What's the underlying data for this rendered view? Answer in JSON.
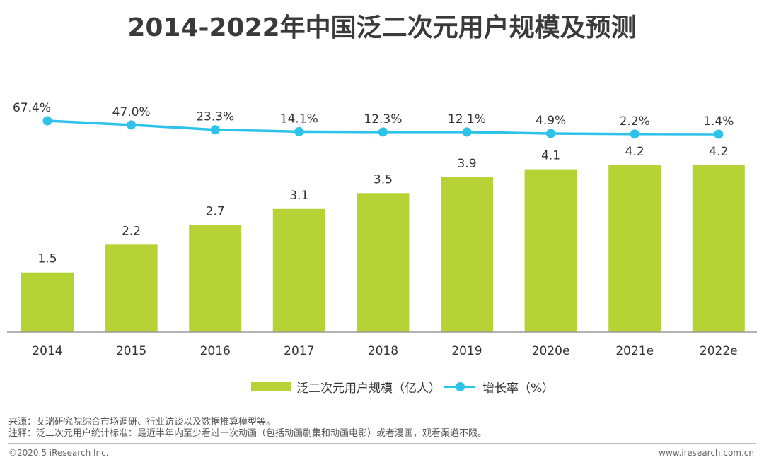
{
  "title": "2014-2022年中国泛二次元用户规模及预测",
  "chart_data": {
    "type": "bar",
    "categories": [
      "2014",
      "2015",
      "2016",
      "2017",
      "2018",
      "2019",
      "2020e",
      "2021e",
      "2022e"
    ],
    "series": [
      {
        "name": "泛二次元用户规模（亿人）",
        "type": "bar",
        "color": "#b5d334",
        "values": [
          1.5,
          2.2,
          2.7,
          3.1,
          3.5,
          3.9,
          4.1,
          4.2,
          4.2
        ],
        "labels": [
          "1.5",
          "2.2",
          "2.7",
          "3.1",
          "3.5",
          "3.9",
          "4.1",
          "4.2",
          "4.2"
        ]
      },
      {
        "name": "增长率（%）",
        "type": "line",
        "color": "#2dc2ea",
        "values": [
          67.4,
          47.0,
          23.3,
          14.1,
          12.3,
          12.1,
          4.9,
          2.2,
          1.4
        ],
        "labels": [
          "67.4%",
          "47.0%",
          "23.3%",
          "14.1%",
          "12.3%",
          "12.1%",
          "4.9%",
          "2.2%",
          "1.4%"
        ]
      }
    ],
    "ylim_bar": [
      0,
      5
    ],
    "ylim_line": [
      0,
      70
    ],
    "legend_position": "bottom"
  },
  "notes": {
    "source": "来源：艾瑞研究院综合市场调研、行业访谈以及数据推算模型等。",
    "note": "注释：泛二次元用户统计标准：最近半年内至少看过一次动画（包括动画剧集和动画电影）或者漫画，观看渠道不限。"
  },
  "footer": {
    "copyright": "©2020.5 iResearch Inc.",
    "website": "www.iresearch.com.cn"
  }
}
